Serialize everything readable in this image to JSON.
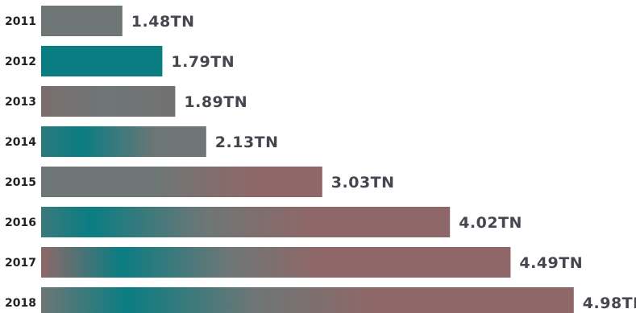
{
  "chart_data": {
    "type": "bar",
    "orientation": "horizontal",
    "title": "",
    "xlabel": "",
    "ylabel": "",
    "categories": [
      "2011",
      "2012",
      "2013",
      "2014",
      "2015",
      "2016",
      "2017",
      "2018"
    ],
    "values": [
      1.48,
      1.79,
      1.89,
      2.13,
      3.03,
      4.02,
      4.49,
      4.98
    ],
    "value_labels": [
      "1.48TN",
      "1.79TN",
      "1.89TN",
      "2.13TN",
      "3.03TN",
      "4.02TN",
      "4.49TN",
      "4.98TN"
    ],
    "grid": false,
    "legend": "none",
    "colors": {
      "teal": "#0a7d82",
      "gray": "#6e7676",
      "rose": "#8e6868"
    }
  }
}
